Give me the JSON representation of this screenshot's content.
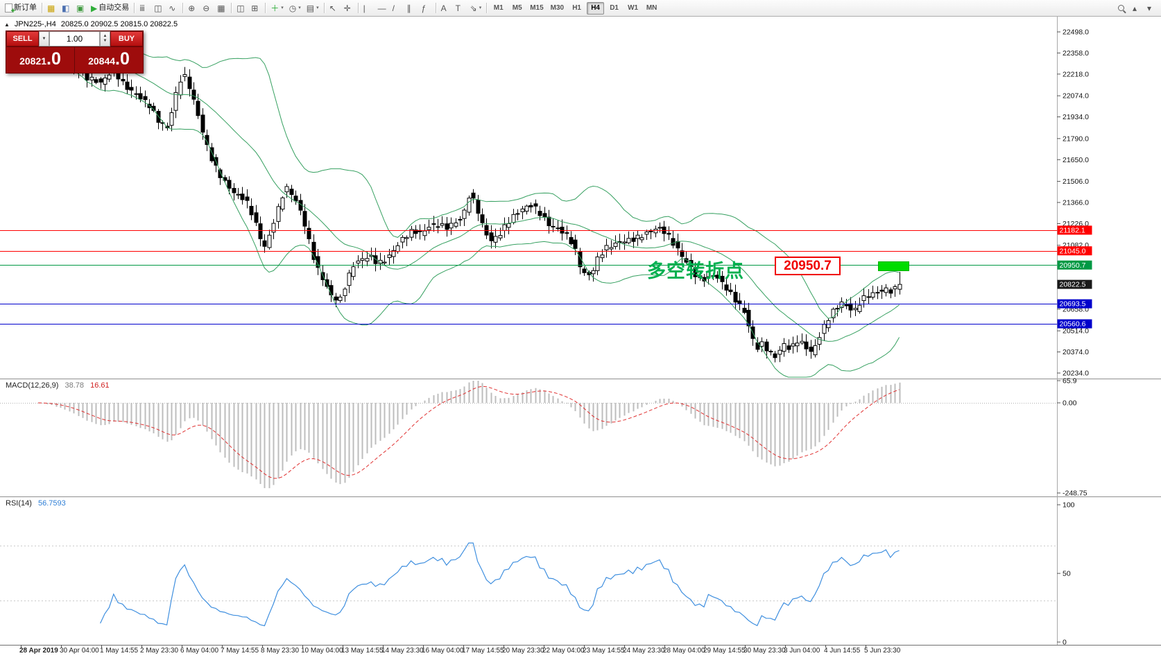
{
  "toolbar": {
    "items": [
      {
        "name": "new-order",
        "glyph": "doc+",
        "overlay": "+",
        "label": "新订单"
      },
      {
        "sep": true
      },
      {
        "name": "market-watch",
        "glyph": "▦",
        "color": "#c8a000"
      },
      {
        "name": "navigator",
        "glyph": "◧",
        "color": "#4a6fb0"
      },
      {
        "name": "terminal",
        "glyph": "▣",
        "color": "#3f9a3f"
      },
      {
        "name": "autotrading",
        "glyph": "▶",
        "color": "#2fae3a",
        "label": "自动交易"
      },
      {
        "sep": true
      },
      {
        "name": "bar-chart",
        "glyph": "ⅲ"
      },
      {
        "name": "candlestick-chart",
        "glyph": "◫"
      },
      {
        "name": "line-chart",
        "glyph": "∿"
      },
      {
        "sep": true
      },
      {
        "name": "zoom-in",
        "glyph": "⊕"
      },
      {
        "name": "zoom-out",
        "glyph": "⊖"
      },
      {
        "name": "grid",
        "glyph": "▦"
      },
      {
        "sep": true
      },
      {
        "name": "tile-windows",
        "glyph": "◫"
      },
      {
        "name": "cascade-windows",
        "glyph": "⊞"
      },
      {
        "sep": true
      },
      {
        "name": "indicators",
        "glyph": "＋",
        "color": "#2fae3a",
        "caret": true
      },
      {
        "name": "periods",
        "glyph": "◷",
        "caret": true
      },
      {
        "name": "templates",
        "glyph": "▤",
        "caret": true
      },
      {
        "sep": true
      },
      {
        "name": "cursor",
        "glyph": "↖"
      },
      {
        "name": "crosshair",
        "glyph": "✛"
      },
      {
        "sep": true
      },
      {
        "name": "vertical-line",
        "glyph": "|"
      },
      {
        "name": "horizontal-line",
        "glyph": "―"
      },
      {
        "name": "trendline",
        "glyph": "/"
      },
      {
        "name": "equidistant-channel",
        "glyph": "∥"
      },
      {
        "name": "fibonacci",
        "glyph": "ƒ"
      },
      {
        "sep": true
      },
      {
        "name": "text",
        "glyph": "A"
      },
      {
        "name": "text-label",
        "glyph": "T"
      },
      {
        "name": "arrows",
        "glyph": "⇘",
        "caret": true
      },
      {
        "sep": true
      }
    ],
    "timeframes": [
      "M1",
      "M5",
      "M15",
      "M30",
      "H1",
      "H4",
      "D1",
      "W1",
      "MN"
    ],
    "active_timeframe": "H4",
    "right_items": [
      {
        "name": "search",
        "glyph": "mag"
      },
      {
        "name": "scroll-up",
        "glyph": "▴"
      },
      {
        "name": "scroll-down",
        "glyph": "▾"
      }
    ]
  },
  "header": {
    "symbol": "JPN225-,H4",
    "ohlc": "20825.0 20902.5 20815.0 20822.5",
    "triangle_icon": "▲"
  },
  "trade_panel": {
    "sell_label": "SELL",
    "buy_label": "BUY",
    "lot_size": "1.00",
    "dropdown_icon": "▼",
    "spin_up_icon": "▲",
    "spin_down_icon": "▼",
    "sell_price": {
      "main": "20821",
      "pips": ".0"
    },
    "buy_price": {
      "main": "20844",
      "pips": ".0"
    }
  },
  "annotations": {
    "turning_point_text": "多空转折点",
    "price_label": "20950.7"
  },
  "indicators": {
    "macd": {
      "name": "MACD(12,26,9)",
      "main_value": "38.78",
      "signal_value": "16.61"
    },
    "rsi": {
      "name": "RSI(14)",
      "value": "56.7593"
    }
  },
  "levels": [
    {
      "price": 21182.1,
      "label": "21182.1",
      "color": "#ff0000"
    },
    {
      "price": 21045.0,
      "label": "21045.0",
      "color": "#ff0000"
    },
    {
      "price": 20950.7,
      "label": "20950.7",
      "color": "#009944"
    },
    {
      "price": 20693.5,
      "label": "20693.5",
      "color": "#0000cc"
    },
    {
      "price": 20560.6,
      "label": "20560.6",
      "color": "#0000cc"
    }
  ],
  "current_price": {
    "value": 20822.5,
    "label": "20822.5",
    "color": "#1a1a1a"
  },
  "axes": {
    "price_ticks": [
      "22498.0",
      "22358.0",
      "22218.0",
      "22074.0",
      "21934.0",
      "21790.0",
      "21650.0",
      "21506.0",
      "21366.0",
      "21226.0",
      "21082.0",
      "20658.0",
      "20514.0",
      "20374.0",
      "20234.0"
    ],
    "macd_ticks": [
      {
        "v": 65.9,
        "label": "65.9"
      },
      {
        "v": 0,
        "label": "0.00"
      },
      {
        "v": -248.75,
        "label": "-248.75"
      }
    ],
    "rsi_ticks": [
      {
        "v": 100,
        "label": "100"
      },
      {
        "v": 50,
        "label": "50"
      },
      {
        "v": 0,
        "label": "0"
      }
    ],
    "dates": [
      "28 Apr 2019",
      "30 Apr 04:00",
      "1 May 14:55",
      "2 May 23:30",
      "6 May 04:00",
      "7 May 14:55",
      "8 May 23:30",
      "10 May 04:00",
      "13 May 14:55",
      "14 May 23:30",
      "16 May 04:00",
      "17 May 14:55",
      "20 May 23:30",
      "22 May 04:00",
      "23 May 14:55",
      "24 May 23:30",
      "28 May 04:00",
      "29 May 14:55",
      "30 May 23:30",
      "3 Jun 04:00",
      "4 Jun 14:55",
      "5 Jun 23:30"
    ]
  },
  "chart_data": {
    "type": "candlestick",
    "symbol": "JPN225-",
    "period": "H4",
    "visible_price_range": [
      20234,
      22498
    ],
    "last_close": 20822.5,
    "price_path": [
      [
        55,
        22420
      ],
      [
        95,
        22320
      ],
      [
        125,
        22200
      ],
      [
        148,
        22160
      ],
      [
        166,
        22250
      ],
      [
        182,
        22140
      ],
      [
        200,
        22080
      ],
      [
        218,
        22010
      ],
      [
        232,
        21900
      ],
      [
        244,
        21860
      ],
      [
        256,
        22080
      ],
      [
        266,
        22230
      ],
      [
        276,
        22130
      ],
      [
        288,
        21950
      ],
      [
        298,
        21780
      ],
      [
        308,
        21650
      ],
      [
        318,
        21560
      ],
      [
        330,
        21480
      ],
      [
        342,
        21420
      ],
      [
        356,
        21390
      ],
      [
        368,
        21270
      ],
      [
        378,
        21130
      ],
      [
        386,
        21060
      ],
      [
        394,
        21200
      ],
      [
        404,
        21330
      ],
      [
        414,
        21470
      ],
      [
        424,
        21420
      ],
      [
        434,
        21330
      ],
      [
        444,
        21190
      ],
      [
        452,
        21040
      ],
      [
        460,
        20930
      ],
      [
        470,
        20840
      ],
      [
        480,
        20750
      ],
      [
        492,
        20710
      ],
      [
        502,
        20840
      ],
      [
        512,
        20950
      ],
      [
        524,
        20990
      ],
      [
        536,
        21010
      ],
      [
        548,
        20960
      ],
      [
        560,
        20990
      ],
      [
        572,
        21060
      ],
      [
        584,
        21130
      ],
      [
        598,
        21180
      ],
      [
        610,
        21160
      ],
      [
        622,
        21210
      ],
      [
        634,
        21220
      ],
      [
        646,
        21200
      ],
      [
        658,
        21230
      ],
      [
        670,
        21270
      ],
      [
        680,
        21430
      ],
      [
        690,
        21330
      ],
      [
        700,
        21190
      ],
      [
        710,
        21110
      ],
      [
        722,
        21150
      ],
      [
        734,
        21230
      ],
      [
        746,
        21290
      ],
      [
        758,
        21330
      ],
      [
        770,
        21350
      ],
      [
        782,
        21290
      ],
      [
        794,
        21220
      ],
      [
        806,
        21190
      ],
      [
        818,
        21160
      ],
      [
        830,
        21080
      ],
      [
        842,
        20900
      ],
      [
        854,
        20880
      ],
      [
        866,
        21010
      ],
      [
        878,
        21070
      ],
      [
        890,
        21090
      ],
      [
        902,
        21110
      ],
      [
        914,
        21120
      ],
      [
        926,
        21140
      ],
      [
        938,
        21170
      ],
      [
        950,
        21200
      ],
      [
        962,
        21170
      ],
      [
        974,
        21090
      ],
      [
        986,
        21010
      ],
      [
        996,
        20950
      ],
      [
        1006,
        20880
      ],
      [
        1016,
        20850
      ],
      [
        1026,
        20900
      ],
      [
        1036,
        20870
      ],
      [
        1046,
        20820
      ],
      [
        1056,
        20760
      ],
      [
        1066,
        20700
      ],
      [
        1076,
        20640
      ],
      [
        1086,
        20480
      ],
      [
        1094,
        20400
      ],
      [
        1102,
        20430
      ],
      [
        1112,
        20370
      ],
      [
        1122,
        20340
      ],
      [
        1132,
        20430
      ],
      [
        1142,
        20390
      ],
      [
        1152,
        20450
      ],
      [
        1162,
        20420
      ],
      [
        1172,
        20370
      ],
      [
        1180,
        20430
      ],
      [
        1188,
        20520
      ],
      [
        1196,
        20590
      ],
      [
        1206,
        20660
      ],
      [
        1216,
        20700
      ],
      [
        1226,
        20670
      ],
      [
        1234,
        20640
      ],
      [
        1242,
        20700
      ],
      [
        1252,
        20750
      ],
      [
        1262,
        20760
      ],
      [
        1272,
        20780
      ],
      [
        1282,
        20790
      ],
      [
        1290,
        20770
      ],
      [
        1298,
        20825
      ]
    ],
    "candle_start": 55,
    "candle_end": 1298,
    "candle_spacing": 6.4,
    "indicators": {
      "bollinger_period": 20,
      "bollinger_dev": 2,
      "macd": [
        12,
        26,
        9
      ],
      "rsi_period": 14
    },
    "macd_axis": {
      "max": 65.9,
      "zero": 0,
      "min": -248.75
    },
    "rsi_axis": {
      "max": 100,
      "min": 0,
      "levels": [
        70,
        30
      ]
    },
    "colors": {
      "bull_candle": "#ffffff",
      "bear_candle": "#000000",
      "wick": "#000000",
      "bollinger": "#36a060",
      "macd_hist": "#bdbdbd",
      "macd_signal": "#e03131",
      "rsi_line": "#3f8fdf",
      "grid": "#c8c8c8"
    }
  }
}
